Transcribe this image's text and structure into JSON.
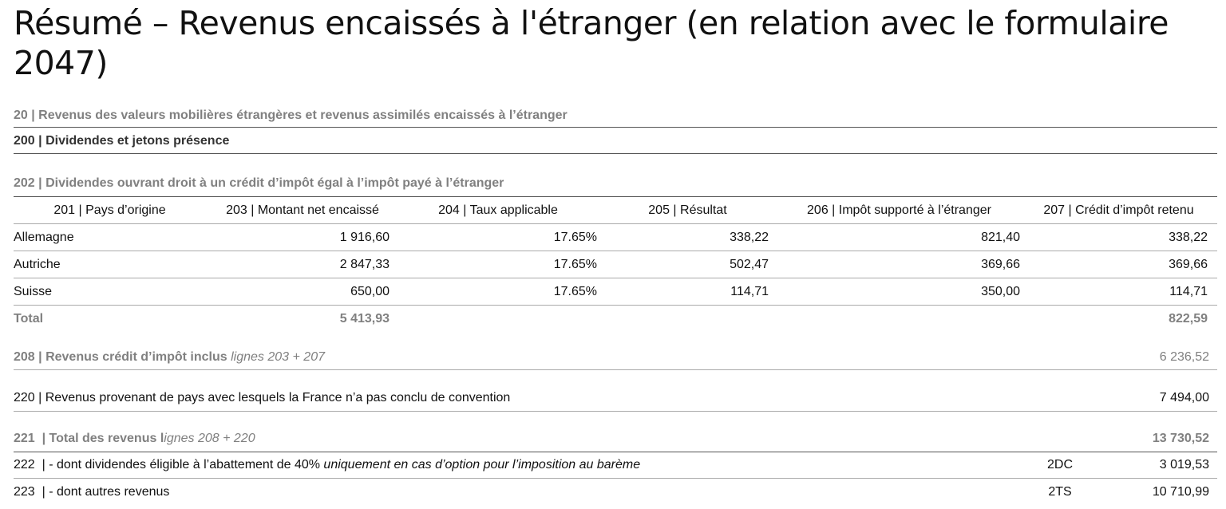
{
  "title": "Résumé – Revenus encaissés à l'étranger (en relation avec le formulaire 2047)",
  "section20": "20 | Revenus des valeurs mobilières étrangères et revenus assimilés encaissés à l’étranger",
  "section200": "200 | Dividendes et jetons présence",
  "section202": "202 | Dividendes ouvrant droit à un crédit d’impôt égal à l’impôt payé à l’étranger",
  "table": {
    "headers": [
      "201 | Pays d’origine",
      "203 | Montant net encaissé",
      "204 | Taux applicable",
      "205 | Résultat",
      "206 | Impôt supporté à l’étranger",
      "207 | Crédit d’impôt retenu"
    ],
    "rows": [
      [
        "Allemagne",
        "1 916,60",
        "17.65%",
        "338,22",
        "821,40",
        "338,22"
      ],
      [
        "Autriche",
        "2 847,33",
        "17.65%",
        "502,47",
        "369,66",
        "369,66"
      ],
      [
        "Suisse",
        "650,00",
        "17.65%",
        "114,71",
        "350,00",
        "114,71"
      ]
    ],
    "total": {
      "label": "Total",
      "amount": "5 413,93",
      "credit": "822,59"
    }
  },
  "line208": {
    "label": "208 | Revenus crédit d’impôt inclus",
    "note": "lignes 203 + 207",
    "value": "6 236,52"
  },
  "line220": {
    "label": "220 | Revenus provenant de pays avec lesquels la France n’a pas conclu de convention",
    "value": "7 494,00"
  },
  "line221": {
    "label": "221  | Total des revenus l",
    "note": "ignes 208 + 220",
    "value": "13 730,52"
  },
  "line222": {
    "label": "222  | - dont dividendes éligible à l’abattement de 40%",
    "note": "uniquement en cas d’option pour l’imposition au barème",
    "code": "2DC",
    "value": "3 019,53"
  },
  "line223": {
    "label": "223  | - dont autres revenus",
    "code": "2TS",
    "value": "10 710,99"
  }
}
